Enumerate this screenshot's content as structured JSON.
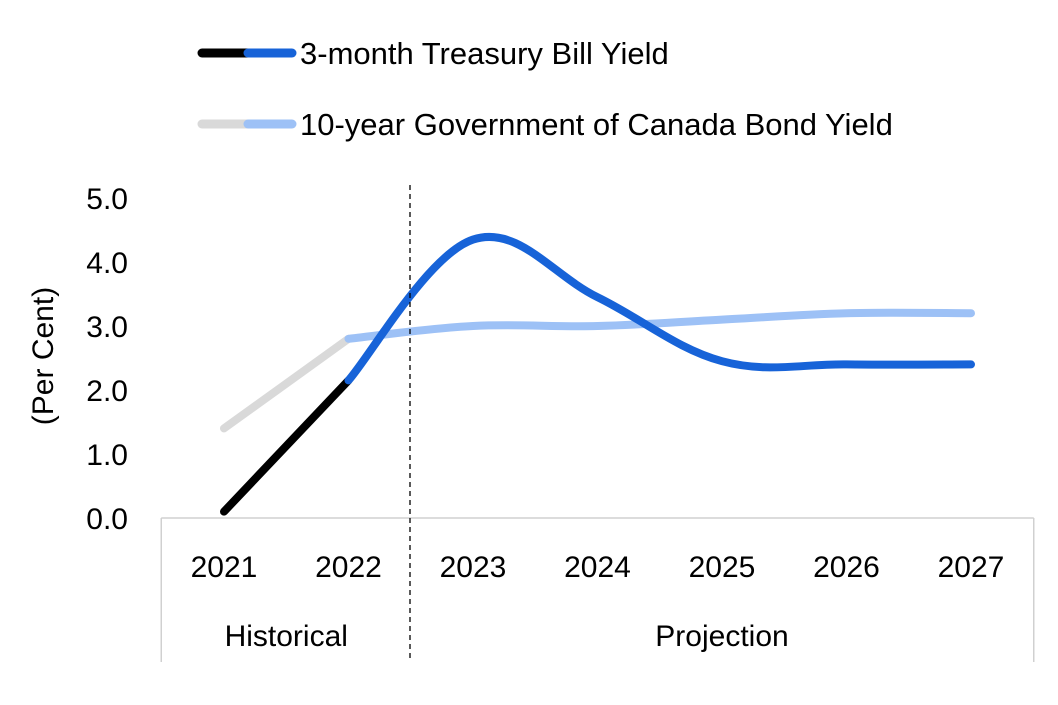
{
  "chart_data": {
    "type": "line",
    "title": "",
    "xlabel": "",
    "ylabel": "(Per Cent)",
    "categories": [
      "2021",
      "2022",
      "2023",
      "2024",
      "2025",
      "2026",
      "2027"
    ],
    "ylim": [
      0,
      5
    ],
    "yticks": [
      "0.0",
      "1.0",
      "2.0",
      "3.0",
      "4.0",
      "5.0"
    ],
    "grid": false,
    "legend_position": "top",
    "groups": [
      {
        "label": "Historical",
        "categories": [
          "2021",
          "2022"
        ]
      },
      {
        "label": "Projection",
        "categories": [
          "2023",
          "2024",
          "2025",
          "2026",
          "2027"
        ]
      }
    ],
    "series": [
      {
        "name": "3-month Treasury Bill Yield",
        "values": [
          0.1,
          2.15,
          4.35,
          3.45,
          2.45,
          2.4,
          2.4
        ],
        "historical_color": "#000000",
        "projection_color": "#1763d8"
      },
      {
        "name": "10-year Government of Canada Bond Yield",
        "values": [
          1.4,
          2.8,
          3.0,
          3.0,
          3.1,
          3.2,
          3.2
        ],
        "historical_color": "#d9d9d9",
        "projection_color": "#9dc1f6"
      }
    ]
  }
}
